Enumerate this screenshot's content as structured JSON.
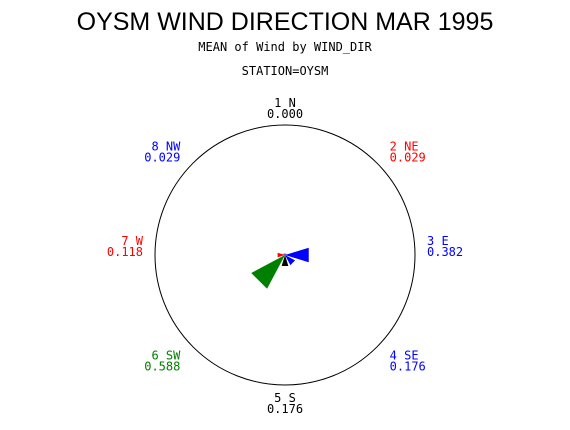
{
  "chart_data": {
    "type": "radar",
    "title": "OYSM WIND DIRECTION MAR 1995",
    "subtitle": "MEAN of Wind by WIND_DIR",
    "station_label": "STATION=OYSM",
    "categories": [
      {
        "id": "1 N",
        "value": 0.0,
        "value_label": "0.000",
        "color": "#000000"
      },
      {
        "id": "2 NE",
        "value": 0.029,
        "value_label": "0.029",
        "color": "#ff0000"
      },
      {
        "id": "3 E",
        "value": 0.382,
        "value_label": "0.382",
        "color": "#0000ff"
      },
      {
        "id": "4 SE",
        "value": 0.176,
        "value_label": "0.176",
        "color": "#0000ff"
      },
      {
        "id": "5 S",
        "value": 0.176,
        "value_label": "0.176",
        "color": "#000000"
      },
      {
        "id": "6 SW",
        "value": 0.588,
        "value_label": "0.588",
        "color": "#008000"
      },
      {
        "id": "7 W",
        "value": 0.118,
        "value_label": "0.118",
        "color": "#ff0000"
      },
      {
        "id": "8 NW",
        "value": 0.029,
        "value_label": "0.029",
        "color": "#0000ff"
      }
    ]
  }
}
